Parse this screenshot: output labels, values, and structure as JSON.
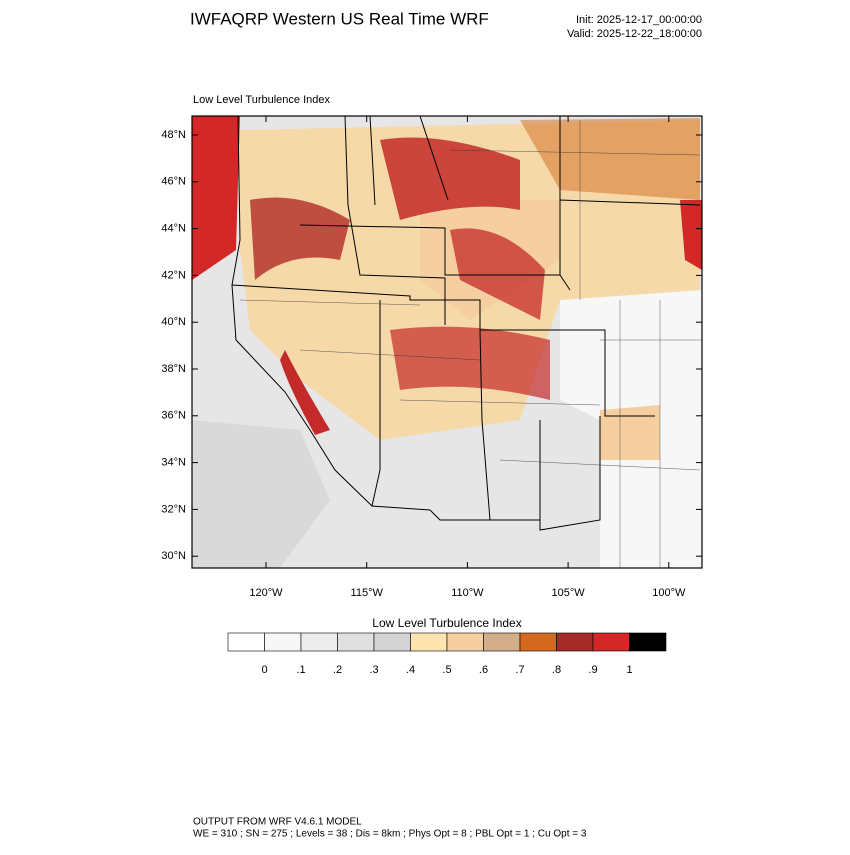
{
  "header": {
    "title": "IWFAQRP Western US Real Time WRF",
    "init": "Init: 2025-12-17_00:00:00",
    "valid": "Valid: 2025-12-22_18:00:00"
  },
  "map": {
    "subtitle": "Low Level Turbulence Index",
    "lat_labels": [
      "48°N",
      "46°N",
      "44°N",
      "42°N",
      "40°N",
      "38°N",
      "36°N",
      "34°N",
      "32°N",
      "30°N"
    ],
    "lon_labels": [
      "120°W",
      "115°W",
      "110°W",
      "105°W",
      "100°W"
    ]
  },
  "colorbar": {
    "title": "Low Level Turbulence Index",
    "colors": [
      "#ffffff",
      "#f7f7f7",
      "#ededed",
      "#e0e0e0",
      "#d4d4d4",
      "#ffe4b0",
      "#f5cfa0",
      "#d2ae8a",
      "#d2691e",
      "#a52a2a",
      "#d22828",
      "#000000"
    ],
    "labels": [
      "0",
      ".1",
      ".2",
      ".3",
      ".4",
      ".5",
      ".6",
      ".7",
      ".8",
      ".9",
      "1"
    ]
  },
  "footer": {
    "line1": "OUTPUT FROM WRF V4.6.1 MODEL",
    "line2": "WE = 310 ; SN = 275 ; Levels = 38 ; Dis = 8km ; Phys Opt = 8 ; PBL Opt = 1 ; Cu Opt = 3"
  }
}
